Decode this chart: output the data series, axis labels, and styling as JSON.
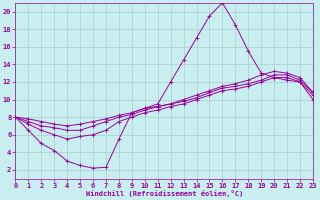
{
  "xlabel": "Windchill (Refroidissement éolien,°C)",
  "xlim": [
    0,
    23
  ],
  "ylim": [
    1,
    21
  ],
  "xticks": [
    0,
    1,
    2,
    3,
    4,
    5,
    6,
    7,
    8,
    9,
    10,
    11,
    12,
    13,
    14,
    15,
    16,
    17,
    18,
    19,
    20,
    21,
    22,
    23
  ],
  "yticks": [
    2,
    4,
    6,
    8,
    10,
    12,
    14,
    16,
    18,
    20
  ],
  "background_color": "#c8eef0",
  "line_color": "#990099",
  "grid_color": "#aacccc",
  "curve1_x": [
    0,
    1,
    2,
    3,
    4,
    5,
    6,
    7,
    8,
    9,
    10,
    11,
    12,
    13,
    14,
    15,
    16,
    17,
    18,
    19,
    20,
    21,
    22,
    23
  ],
  "curve1_y": [
    8.0,
    6.5,
    5.0,
    4.2,
    3.0,
    2.5,
    2.2,
    2.3,
    5.5,
    8.5,
    9.0,
    9.5,
    12.0,
    14.5,
    17.0,
    19.5,
    21.0,
    18.5,
    15.5,
    13.0,
    12.5,
    12.2,
    12.0,
    10.0
  ],
  "curve2_x": [
    0,
    1,
    2,
    3,
    4,
    5,
    6,
    7,
    8,
    9,
    10,
    11,
    12,
    13,
    14,
    15,
    16,
    17,
    18,
    19,
    20,
    21,
    22,
    23
  ],
  "curve2_y": [
    8.0,
    7.2,
    6.5,
    6.0,
    5.5,
    5.8,
    6.0,
    6.5,
    7.5,
    8.0,
    8.5,
    8.8,
    9.2,
    9.5,
    10.0,
    10.5,
    11.0,
    11.2,
    11.5,
    12.0,
    12.5,
    12.5,
    12.0,
    10.5
  ],
  "curve3_x": [
    0,
    1,
    2,
    3,
    4,
    5,
    6,
    7,
    8,
    9,
    10,
    11,
    12,
    13,
    14,
    15,
    16,
    17,
    18,
    19,
    20,
    21,
    22,
    23
  ],
  "curve3_y": [
    8.0,
    7.5,
    7.0,
    6.8,
    6.5,
    6.5,
    7.0,
    7.5,
    8.0,
    8.3,
    8.8,
    9.2,
    9.5,
    9.8,
    10.2,
    10.8,
    11.3,
    11.5,
    11.8,
    12.2,
    12.8,
    12.8,
    12.2,
    10.8
  ],
  "curve4_x": [
    0,
    1,
    2,
    3,
    4,
    5,
    6,
    7,
    8,
    9,
    10,
    11,
    12,
    13,
    14,
    15,
    16,
    17,
    18,
    19,
    20,
    21,
    22,
    23
  ],
  "curve4_y": [
    8.0,
    7.8,
    7.5,
    7.2,
    7.0,
    7.2,
    7.5,
    7.8,
    8.2,
    8.5,
    9.0,
    9.2,
    9.5,
    10.0,
    10.5,
    11.0,
    11.5,
    11.8,
    12.2,
    12.8,
    13.2,
    13.0,
    12.5,
    10.8
  ],
  "marker": "+"
}
